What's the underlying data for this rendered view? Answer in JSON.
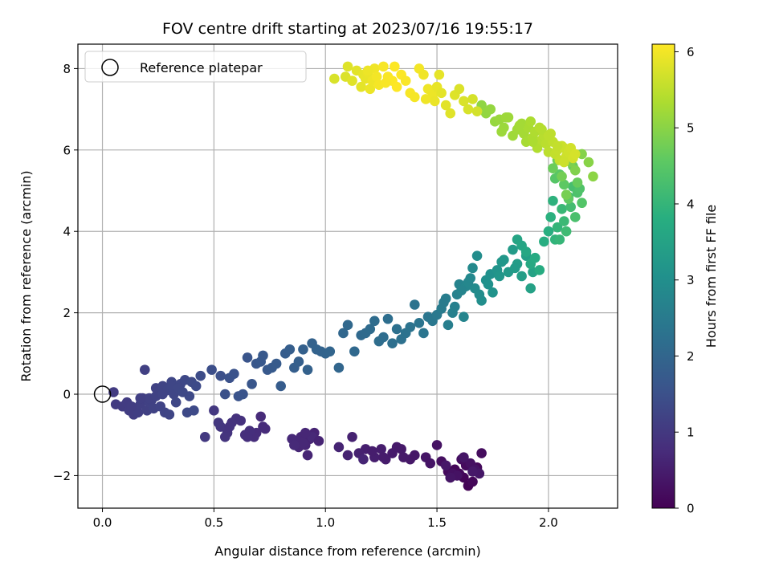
{
  "chart_data": {
    "type": "scatter",
    "title": "FOV centre drift starting at 2023/07/16 19:55:17",
    "xlabel": "Angular distance from reference (arcmin)",
    "ylabel": "Rotation from reference (arcmin)",
    "xlim": [
      -0.11,
      2.31
    ],
    "ylim": [
      -2.8,
      8.6
    ],
    "xticks": [
      "0.0",
      "0.5",
      "1.0",
      "1.5",
      "2.0"
    ],
    "yticks": [
      "−2",
      "0",
      "2",
      "4",
      "6",
      "8"
    ],
    "grid": true,
    "legend": {
      "placement": "top-left",
      "entries": [
        {
          "label": "Reference platepar",
          "marker": "open-circle",
          "x": 0,
          "y": 0
        }
      ]
    },
    "colorbar": {
      "label": "Hours from first FF file",
      "range": [
        0,
        6.1
      ],
      "ticks": [
        "0",
        "1",
        "2",
        "3",
        "4",
        "5",
        "6"
      ],
      "colormap": "viridis"
    },
    "series": [
      {
        "x": [
          1.64,
          1.62,
          1.58,
          1.66,
          1.6,
          1.68,
          1.55,
          1.63,
          1.7,
          1.61,
          1.52,
          1.57,
          1.65,
          1.59,
          1.67,
          1.56,
          1.62,
          1.69,
          1.54,
          1.66
        ],
        "y": [
          -2.25,
          -2.05,
          -1.85,
          -2.15,
          -1.95,
          -1.8,
          -1.9,
          -1.75,
          -1.45,
          -1.6,
          -1.65,
          -1.95,
          -1.7,
          -2.0,
          -1.85,
          -2.05,
          -1.55,
          -1.95,
          -1.75,
          -1.9
        ],
        "hours": [
          0.03,
          0.05,
          0.08,
          0.1,
          0.12,
          0.14,
          0.16,
          0.18,
          0.2,
          0.22,
          0.24,
          0.26,
          0.28,
          0.3,
          0.32,
          0.34,
          0.36,
          0.38,
          0.4,
          0.42
        ]
      },
      {
        "x": [
          1.5,
          1.45,
          1.38,
          1.34,
          1.3,
          1.27,
          1.25,
          1.22,
          1.18,
          1.15,
          1.12,
          1.1,
          1.06,
          1.17,
          1.26,
          1.32,
          1.4,
          1.47,
          1.35,
          1.21
        ],
        "y": [
          -1.25,
          -1.55,
          -1.6,
          -1.35,
          -1.45,
          -1.6,
          -1.35,
          -1.55,
          -1.35,
          -1.45,
          -1.05,
          -1.5,
          -1.3,
          -1.6,
          -1.55,
          -1.3,
          -1.5,
          -1.7,
          -1.55,
          -1.4
        ],
        "hours": [
          0.3,
          0.35,
          0.4,
          0.42,
          0.44,
          0.46,
          0.48,
          0.5,
          0.52,
          0.55,
          0.57,
          0.59,
          0.61,
          0.63,
          0.47,
          0.43,
          0.38,
          0.33,
          0.41,
          0.49
        ]
      },
      {
        "x": [
          0.95,
          0.93,
          0.91,
          0.89,
          0.87,
          0.85,
          0.92,
          0.88,
          0.9,
          0.94,
          0.97,
          0.86,
          0.91
        ],
        "y": [
          -0.95,
          -1.1,
          -1.25,
          -1.05,
          -1.15,
          -1.1,
          -1.5,
          -1.3,
          -1.2,
          -1.05,
          -1.15,
          -1.25,
          -0.95
        ],
        "hours": [
          0.6,
          0.62,
          0.64,
          0.66,
          0.68,
          0.7,
          0.63,
          0.65,
          0.67,
          0.69,
          0.61,
          0.71,
          0.66
        ]
      },
      {
        "x": [
          0.71,
          0.72,
          0.69,
          0.68,
          0.66,
          0.73,
          0.64,
          0.62,
          0.6,
          0.58,
          0.56,
          0.55,
          0.53,
          0.52,
          0.5,
          0.46,
          0.57,
          0.65
        ],
        "y": [
          -0.55,
          -0.8,
          -0.95,
          -1.05,
          -0.9,
          -0.85,
          -1.0,
          -0.65,
          -0.6,
          -0.7,
          -0.95,
          -1.05,
          -0.8,
          -0.7,
          -0.4,
          -1.05,
          -0.8,
          -1.05
        ],
        "hours": [
          0.72,
          0.74,
          0.76,
          0.78,
          0.8,
          0.75,
          0.82,
          0.84,
          0.86,
          0.88,
          0.9,
          0.92,
          0.94,
          0.96,
          0.98,
          1.0,
          0.89,
          0.81
        ]
      },
      {
        "x": [
          0.05,
          0.06,
          0.09,
          0.11,
          0.12,
          0.14,
          0.15,
          0.16,
          0.17,
          0.18,
          0.19,
          0.2,
          0.21,
          0.22,
          0.23,
          0.24,
          0.25,
          0.26,
          0.27,
          0.28,
          0.29,
          0.3,
          0.31,
          0.32,
          0.33,
          0.35,
          0.37,
          0.38,
          0.39,
          0.4,
          0.41,
          0.42,
          0.21,
          0.24,
          0.27,
          0.31,
          0.34,
          0.13,
          0.17,
          0.36
        ],
        "y": [
          0.05,
          -0.25,
          -0.3,
          -0.2,
          -0.4,
          -0.5,
          -0.35,
          -0.45,
          -0.25,
          -0.1,
          0.6,
          -0.4,
          -0.2,
          -0.15,
          -0.35,
          0.15,
          0.05,
          -0.3,
          0.2,
          -0.45,
          0.1,
          -0.5,
          0.3,
          0.0,
          -0.2,
          0.25,
          0.35,
          -0.45,
          -0.05,
          0.3,
          -0.4,
          0.2,
          -0.1,
          -0.05,
          0.0,
          0.2,
          0.15,
          -0.3,
          -0.1,
          0.05
        ],
        "hours": [
          1.05,
          1.06,
          1.07,
          1.08,
          1.09,
          1.1,
          1.11,
          1.12,
          1.13,
          1.14,
          1.15,
          1.16,
          1.17,
          1.18,
          1.19,
          1.2,
          1.21,
          1.22,
          1.23,
          1.24,
          1.25,
          1.26,
          1.27,
          1.28,
          1.29,
          1.3,
          1.32,
          1.33,
          1.34,
          1.35,
          1.36,
          1.37,
          1.17,
          1.2,
          1.23,
          1.27,
          1.3,
          1.1,
          1.13,
          1.31
        ]
      },
      {
        "x": [
          0.44,
          0.49,
          0.53,
          0.55,
          0.57,
          0.59,
          0.61,
          0.63,
          0.65,
          0.67,
          0.69,
          0.71,
          0.72,
          0.74,
          0.76,
          0.78,
          0.8,
          0.82,
          0.84,
          0.86,
          0.88,
          0.9,
          0.92,
          0.94,
          0.96,
          0.98,
          1.0,
          1.02,
          1.06,
          1.08,
          1.1,
          1.13,
          1.16,
          1.18,
          1.2,
          1.22,
          1.24,
          1.26,
          1.28,
          1.3,
          1.32,
          1.34,
          1.36,
          1.38,
          1.4,
          1.42,
          1.44,
          1.46
        ],
        "y": [
          0.45,
          0.6,
          0.45,
          0.0,
          0.4,
          0.5,
          -0.05,
          0.0,
          0.9,
          0.25,
          0.75,
          0.8,
          0.95,
          0.6,
          0.65,
          0.75,
          0.2,
          1.0,
          1.1,
          0.65,
          0.8,
          1.1,
          0.6,
          1.25,
          1.1,
          1.05,
          1.0,
          1.05,
          0.65,
          1.5,
          1.7,
          1.05,
          1.45,
          1.5,
          1.6,
          1.8,
          1.3,
          1.4,
          1.85,
          1.25,
          1.6,
          1.35,
          1.5,
          1.65,
          2.2,
          1.75,
          1.5,
          1.9
        ],
        "hours": [
          1.4,
          1.45,
          1.48,
          1.5,
          1.52,
          1.54,
          1.56,
          1.58,
          1.6,
          1.62,
          1.64,
          1.66,
          1.68,
          1.7,
          1.72,
          1.74,
          1.76,
          1.78,
          1.8,
          1.82,
          1.84,
          1.86,
          1.88,
          1.9,
          1.92,
          1.94,
          1.96,
          1.98,
          2.0,
          2.02,
          2.04,
          2.06,
          2.08,
          2.1,
          2.12,
          2.14,
          2.16,
          2.18,
          2.2,
          2.22,
          2.24,
          2.26,
          2.28,
          2.3,
          2.32,
          2.34,
          2.36,
          2.38
        ]
      },
      {
        "x": [
          1.48,
          1.5,
          1.52,
          1.54,
          1.55,
          1.57,
          1.59,
          1.6,
          1.62,
          1.63,
          1.65,
          1.66,
          1.67,
          1.68,
          1.7,
          1.72,
          1.74,
          1.75,
          1.77,
          1.78,
          1.8,
          1.82,
          1.84,
          1.86,
          1.88,
          1.9,
          1.92,
          1.93,
          1.53,
          1.58,
          1.61,
          1.64,
          1.69,
          1.73,
          1.79,
          1.85
        ],
        "y": [
          1.8,
          1.95,
          2.1,
          2.35,
          1.7,
          2.0,
          2.45,
          2.7,
          1.9,
          2.65,
          2.85,
          3.1,
          2.6,
          3.4,
          2.3,
          2.8,
          2.95,
          2.5,
          3.05,
          2.9,
          3.3,
          3.0,
          3.55,
          3.2,
          2.9,
          3.4,
          2.6,
          3.0,
          2.25,
          2.15,
          2.55,
          2.75,
          2.45,
          2.7,
          3.25,
          3.1
        ],
        "hours": [
          2.4,
          2.45,
          2.5,
          2.55,
          2.58,
          2.62,
          2.66,
          2.7,
          2.74,
          2.78,
          2.82,
          2.86,
          2.9,
          2.94,
          2.98,
          3.02,
          3.06,
          3.1,
          3.14,
          3.18,
          3.22,
          3.26,
          3.3,
          3.34,
          3.38,
          3.42,
          3.46,
          3.5,
          2.52,
          2.64,
          2.72,
          2.8,
          2.92,
          3.04,
          3.2,
          3.32
        ]
      },
      {
        "x": [
          1.86,
          1.88,
          1.9,
          1.92,
          1.94,
          1.96,
          1.98,
          2.0,
          2.01,
          2.02,
          2.03,
          2.04,
          2.05,
          2.06,
          2.07,
          2.08,
          2.09,
          2.1,
          2.11,
          2.12,
          2.13,
          2.14,
          2.15,
          2.03,
          2.05,
          2.07,
          2.09,
          2.11,
          2.13,
          2.02,
          2.04,
          2.06,
          2.08,
          2.1,
          2.12,
          2.15,
          2.18,
          2.2
        ],
        "y": [
          3.8,
          3.65,
          3.5,
          3.2,
          3.35,
          3.05,
          3.75,
          4.0,
          4.35,
          4.75,
          3.8,
          4.1,
          3.8,
          4.55,
          4.25,
          4.0,
          4.85,
          4.6,
          5.1,
          4.35,
          4.95,
          5.05,
          4.7,
          5.3,
          5.4,
          5.15,
          4.8,
          5.6,
          5.2,
          5.55,
          5.75,
          5.35,
          4.9,
          5.7,
          5.5,
          5.9,
          5.7,
          5.35
        ],
        "hours": [
          3.55,
          3.58,
          3.62,
          3.66,
          3.7,
          3.74,
          3.78,
          3.82,
          3.86,
          3.9,
          3.94,
          3.98,
          4.02,
          4.06,
          4.1,
          4.14,
          4.18,
          4.22,
          4.26,
          4.3,
          4.34,
          4.38,
          4.42,
          4.46,
          4.5,
          4.54,
          4.58,
          4.62,
          4.66,
          4.7,
          4.74,
          4.78,
          4.82,
          4.86,
          4.9,
          4.94,
          4.98,
          5.02
        ]
      },
      {
        "x": [
          1.7,
          1.72,
          1.74,
          1.76,
          1.78,
          1.8,
          1.82,
          1.84,
          1.86,
          1.88,
          1.89,
          1.9,
          1.91,
          1.92,
          1.93,
          1.94,
          1.95,
          1.96,
          1.97,
          1.98,
          1.99,
          2.0,
          2.01,
          2.02,
          2.03,
          2.04,
          2.05,
          2.06,
          2.07,
          2.08,
          2.09,
          2.1,
          2.11,
          2.12,
          1.87,
          1.93,
          1.97,
          2.0,
          2.04,
          2.07,
          1.81,
          1.79
        ],
        "y": [
          7.1,
          6.9,
          7.0,
          6.7,
          6.75,
          6.55,
          6.8,
          6.35,
          6.5,
          6.65,
          6.4,
          6.2,
          6.55,
          6.7,
          6.3,
          6.45,
          6.05,
          6.55,
          6.25,
          6.35,
          6.15,
          5.95,
          6.4,
          6.2,
          5.9,
          6.0,
          5.75,
          6.1,
          6.05,
          5.85,
          5.95,
          6.05,
          5.8,
          5.9,
          6.6,
          6.2,
          6.5,
          6.35,
          6.1,
          5.7,
          6.8,
          6.45
        ],
        "hours": [
          5.05,
          5.08,
          5.1,
          5.12,
          5.14,
          5.16,
          5.18,
          5.2,
          5.22,
          5.24,
          5.26,
          5.28,
          5.3,
          5.32,
          5.34,
          5.36,
          5.38,
          5.4,
          5.42,
          5.44,
          5.46,
          5.48,
          5.5,
          5.52,
          5.54,
          5.56,
          5.58,
          5.6,
          5.62,
          5.64,
          5.66,
          5.68,
          5.7,
          5.72,
          5.25,
          5.33,
          5.41,
          5.49,
          5.55,
          5.63,
          5.19,
          5.17
        ]
      },
      {
        "x": [
          1.04,
          1.09,
          1.1,
          1.12,
          1.14,
          1.16,
          1.17,
          1.18,
          1.19,
          1.2,
          1.21,
          1.22,
          1.23,
          1.24,
          1.26,
          1.28,
          1.3,
          1.31,
          1.32,
          1.34,
          1.36,
          1.38,
          1.4,
          1.42,
          1.44,
          1.46,
          1.48,
          1.49,
          1.5,
          1.51,
          1.52,
          1.54,
          1.56,
          1.58,
          1.6,
          1.62,
          1.64,
          1.66,
          1.68,
          1.19,
          1.27,
          1.45
        ],
        "y": [
          7.75,
          7.8,
          8.05,
          7.7,
          7.95,
          7.55,
          7.85,
          7.75,
          7.9,
          7.5,
          7.7,
          8.0,
          7.8,
          7.6,
          8.05,
          7.8,
          7.7,
          8.05,
          7.55,
          7.85,
          7.7,
          7.4,
          7.3,
          8.0,
          7.85,
          7.5,
          7.35,
          7.2,
          7.55,
          7.85,
          7.4,
          7.1,
          6.9,
          7.35,
          7.5,
          7.2,
          7.0,
          7.25,
          6.95,
          7.95,
          7.65,
          7.25
        ],
        "hours": [
          5.75,
          5.78,
          5.8,
          5.82,
          5.84,
          5.86,
          5.88,
          5.9,
          5.92,
          5.94,
          5.96,
          5.98,
          6.0,
          6.02,
          6.04,
          6.06,
          6.08,
          6.09,
          6.1,
          6.08,
          6.06,
          6.04,
          6.02,
          6.0,
          5.98,
          5.96,
          5.94,
          5.92,
          5.9,
          5.88,
          5.86,
          5.84,
          5.82,
          5.8,
          5.78,
          5.76,
          5.74,
          5.72,
          5.7,
          5.95,
          6.05,
          5.97
        ]
      }
    ]
  }
}
